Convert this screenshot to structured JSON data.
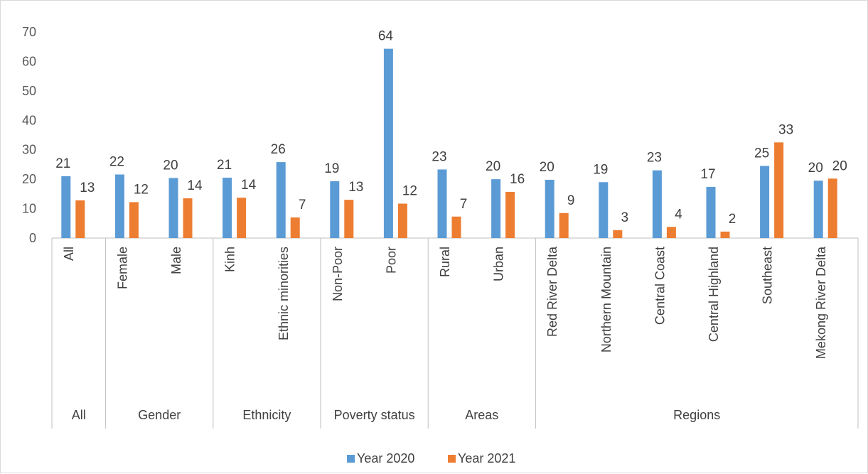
{
  "chart_data": {
    "type": "bar",
    "title": "",
    "xlabel": "",
    "ylabel": "",
    "ylim": [
      0,
      70
    ],
    "yticks": [
      0,
      10,
      20,
      30,
      40,
      50,
      60,
      70
    ],
    "grid": false,
    "legend_position": "bottom",
    "groups": [
      {
        "label": "All",
        "categories": [
          "All"
        ]
      },
      {
        "label": "Gender",
        "categories": [
          "Female",
          "Male"
        ]
      },
      {
        "label": "Ethnicity",
        "categories": [
          "Kinh",
          "Ethnic minorities"
        ]
      },
      {
        "label": "Poverty status",
        "categories": [
          "Non-Poor",
          "Poor"
        ]
      },
      {
        "label": "Areas",
        "categories": [
          "Rural",
          "Urban"
        ]
      },
      {
        "label": "Regions",
        "categories": [
          "Red River Delta",
          "Northern Mountain",
          "Central Coast",
          "Central Highland",
          "Southeast",
          "Mekong River Delta"
        ]
      }
    ],
    "categories": [
      "All",
      "Female",
      "Male",
      "Kinh",
      "Ethnic minorities",
      "Non-Poor",
      "Poor",
      "Rural",
      "Urban",
      "Red River Delta",
      "Northern Mountain",
      "Central Coast",
      "Central Highland",
      "Southeast",
      "Mekong River Delta"
    ],
    "series": [
      {
        "name": "Year 2020",
        "color": "#5b9bd5",
        "values": [
          21,
          21.6,
          20.4,
          20.5,
          25.8,
          19.3,
          64.3,
          23.3,
          20,
          19.8,
          19,
          23,
          17.4,
          24.5,
          19.5
        ],
        "labels": [
          "21",
          "22",
          "20",
          "21",
          "26",
          "19",
          "64",
          "23",
          "20",
          "20",
          "19",
          "23",
          "17",
          "25",
          "20"
        ]
      },
      {
        "name": "Year 2021",
        "color": "#ed7d31",
        "values": [
          12.8,
          12.2,
          13.5,
          13.7,
          7,
          13,
          11.7,
          7.3,
          15.7,
          8.5,
          2.7,
          3.8,
          2.2,
          32.5,
          20.2
        ],
        "labels": [
          "13",
          "12",
          "14",
          "14",
          "7",
          "13",
          "12",
          "7",
          "16",
          "9",
          "3",
          "4",
          "2",
          "33",
          "20"
        ]
      }
    ]
  }
}
